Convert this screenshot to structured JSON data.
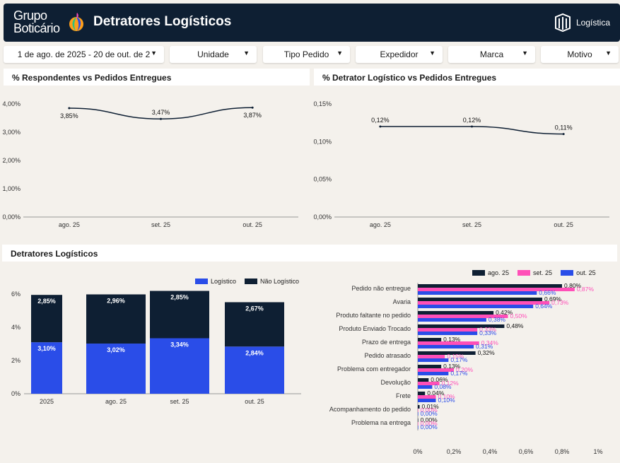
{
  "header": {
    "logo_line1": "Grupo",
    "logo_line2": "Boticário",
    "title": "Detratores Logísticos",
    "brand_label": "Logística"
  },
  "filters": [
    {
      "label": "1 de ago. de 2025 - 20 de out. de 2"
    },
    {
      "label": "Unidade"
    },
    {
      "label": "Tipo Pedido"
    },
    {
      "label": "Expedidor"
    },
    {
      "label": "Marca"
    },
    {
      "label": "Motivo"
    }
  ],
  "sections": {
    "respondentes": "% Respondentes vs Pedidos Entregues",
    "detrator": "% Detrator Logístico vs Pedidos Entregues",
    "detratores": "Detratores Logísticos"
  },
  "colors": {
    "navy": "#0e1f33",
    "blue": "#2a4de8",
    "pink": "#ff4fb8",
    "line": "#0e1f33"
  },
  "chart_data": [
    {
      "type": "line",
      "title": "% Respondentes vs Pedidos Entregues",
      "x": [
        "ago. 25",
        "set. 25",
        "out. 25"
      ],
      "values": [
        3.85,
        3.47,
        3.87
      ],
      "labels": [
        "3,85%",
        "3,47%",
        "3,87%"
      ],
      "yticks": [
        "0,00%",
        "1,00%",
        "2,00%",
        "3,00%",
        "4,00%"
      ],
      "ylim": [
        0,
        4
      ]
    },
    {
      "type": "line",
      "title": "% Detrator Logístico vs Pedidos Entregues",
      "x": [
        "ago. 25",
        "set. 25",
        "out. 25"
      ],
      "values": [
        0.12,
        0.12,
        0.11
      ],
      "labels": [
        "0,12%",
        "0,12%",
        "0,11%"
      ],
      "yticks": [
        "0,00%",
        "0,05%",
        "0,10%",
        "0,15%"
      ],
      "ylim": [
        0,
        0.15
      ]
    },
    {
      "type": "bar",
      "stacked": true,
      "categories": [
        "2025",
        "ago. 25",
        "set. 25",
        "out. 25"
      ],
      "series": [
        {
          "name": "Logístico",
          "values": [
            3.1,
            3.02,
            3.34,
            2.84
          ],
          "labels": [
            "3,10%",
            "3,02%",
            "3,34%",
            "2,84%"
          ]
        },
        {
          "name": "Não Logístico",
          "values": [
            2.85,
            2.96,
            2.85,
            2.67
          ],
          "labels": [
            "2,85%",
            "2,96%",
            "2,85%",
            "2,67%"
          ]
        }
      ],
      "yticks": [
        "0%",
        "2%",
        "4%",
        "6%"
      ],
      "ylim": [
        0,
        6
      ],
      "legend": "top-right"
    },
    {
      "type": "bar",
      "orientation": "horizontal",
      "categories": [
        "Pedido não entregue",
        "Avaria",
        "Produto faltante no pedido",
        "Produto Enviado Trocado",
        "Prazo de entrega",
        "Pedido atrasado",
        "Problema com entregador",
        "Devolução",
        "Frete",
        "Acompanhamento do pedido",
        "Problema na entrega"
      ],
      "series": [
        {
          "name": "ago. 25",
          "values": [
            0.8,
            0.69,
            0.42,
            0.48,
            0.13,
            0.32,
            0.13,
            0.06,
            0.04,
            0.01,
            0.0
          ],
          "labels": [
            "0,80%",
            "0,69%",
            "0,42%",
            "0,48%",
            "0,13%",
            "0,32%",
            "0,13%",
            "0,06%",
            "0,04%",
            "0,01%",
            "0,00%"
          ]
        },
        {
          "name": "set. 25",
          "values": [
            0.87,
            0.73,
            0.5,
            0.33,
            0.34,
            0.15,
            0.2,
            0.12,
            0.1,
            0.0,
            0.0
          ],
          "labels": [
            "0,87%",
            "0,73%",
            "0,50%",
            "0,33%",
            "0,34%",
            "0,15%",
            "0,20%",
            "0,12%",
            "0,10%",
            "0,00%",
            "0,00%"
          ]
        },
        {
          "name": "out. 25",
          "values": [
            0.66,
            0.64,
            0.38,
            0.33,
            0.31,
            0.17,
            0.17,
            0.08,
            0.1,
            0.0,
            0.0
          ],
          "labels": [
            "0,66%",
            "0,64%",
            "0,38%",
            "0,33%",
            "0,31%",
            "0,17%",
            "0,17%",
            "0,08%",
            "0,10%",
            "0,00%",
            "0,00%"
          ]
        }
      ],
      "xticks": [
        "0%",
        "0,2%",
        "0,4%",
        "0,6%",
        "0,8%",
        "1%"
      ],
      "xlim": [
        0,
        1
      ],
      "legend": "top-right"
    }
  ]
}
